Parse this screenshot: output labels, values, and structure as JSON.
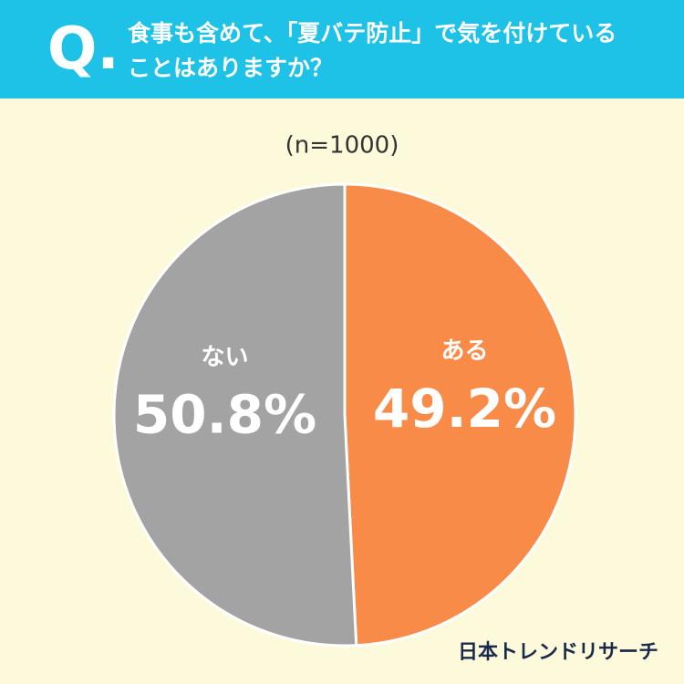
{
  "question_label": "Q.",
  "source": "日本トレンドリサーチ",
  "chart_data": {
    "type": "pie",
    "title": "食事も含めて、「夏バテ防止」で気を付けていることはありますか？",
    "subtitle": "(n=1000)",
    "categories": [
      "ある",
      "ない"
    ],
    "values": [
      49.2,
      50.8
    ],
    "value_labels": [
      "49.2%",
      "50.8%"
    ],
    "colors": [
      "#f88b48",
      "#a3a3a3"
    ]
  }
}
